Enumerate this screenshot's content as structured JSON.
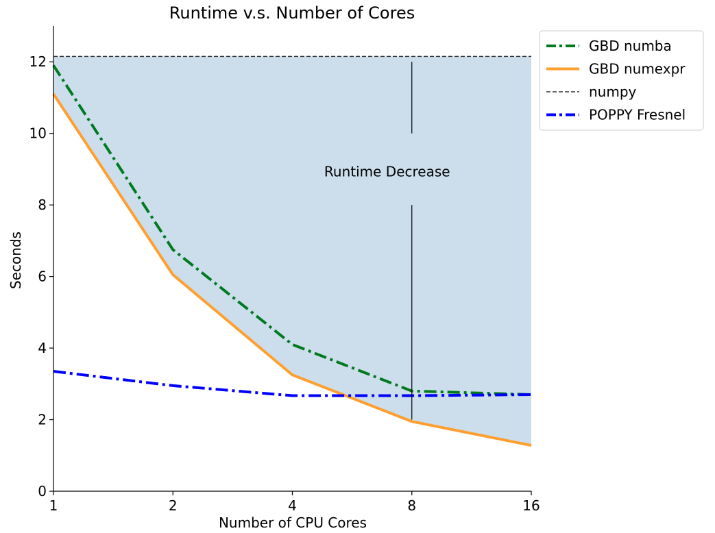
{
  "chart_data": {
    "type": "line",
    "title": "Runtime v.s. Number of Cores",
    "xlabel": "Number of CPU Cores",
    "ylabel": "Seconds",
    "xscale": "log2",
    "x": [
      1,
      2,
      4,
      8,
      16
    ],
    "x_tick_labels": [
      "1",
      "2",
      "4",
      "8",
      "16"
    ],
    "xlim": [
      1,
      16
    ],
    "ylim": [
      0,
      13
    ],
    "y_ticks": [
      0,
      2,
      4,
      6,
      8,
      10,
      12
    ],
    "y_tick_labels": [
      "0",
      "2",
      "4",
      "6",
      "8",
      "10",
      "12"
    ],
    "series": [
      {
        "name": "GBD numba",
        "values": [
          11.9,
          6.75,
          4.1,
          2.8,
          2.7
        ],
        "color": "#007a1f",
        "style": "dashdot",
        "width": "thick"
      },
      {
        "name": "GBD numexpr",
        "values": [
          11.1,
          6.05,
          3.25,
          1.95,
          1.28
        ],
        "color": "#ff9f2f",
        "style": "solid",
        "width": "thick"
      },
      {
        "name": "numpy",
        "values": [
          12.15,
          12.15,
          12.15,
          12.15,
          12.15
        ],
        "color": "#333333",
        "style": "dashed",
        "width": "thin"
      },
      {
        "name": "POPPY Fresnel",
        "values": [
          3.35,
          2.95,
          2.67,
          2.67,
          2.7
        ],
        "color": "#0000ff",
        "style": "dashdot",
        "width": "thick"
      }
    ],
    "fill_between": {
      "upper": "numpy",
      "lower": "GBD numexpr",
      "color": "#ccdeec"
    },
    "annotation": {
      "text": "Runtime Decrease",
      "x": 8,
      "y": 8.8
    },
    "annotation_line": {
      "x": 8,
      "segments": [
        [
          10,
          12
        ],
        [
          2,
          8
        ]
      ]
    },
    "legend_position": "upper right, outside plot",
    "grid": false
  }
}
